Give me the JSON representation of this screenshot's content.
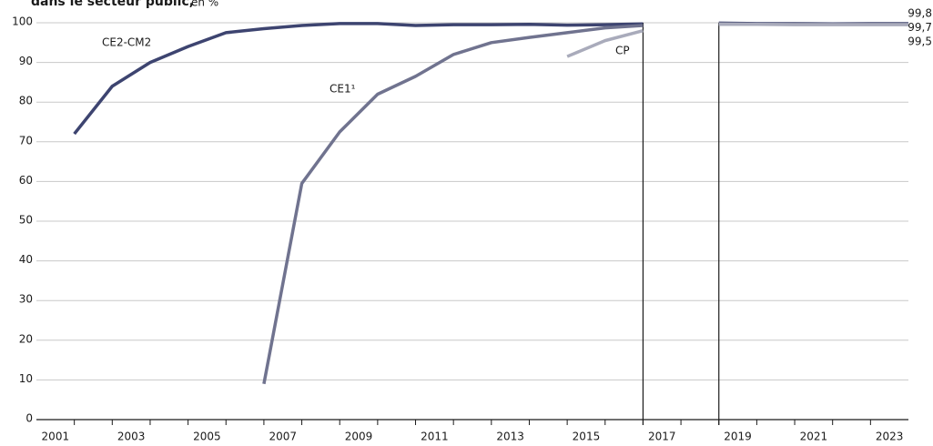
{
  "chart_data": {
    "type": "line",
    "title": "dans le secteur public,",
    "unit": "en %",
    "x": [
      2001.5,
      2002.5,
      2003.5,
      2004.5,
      2005.5,
      2006.5,
      2007.5,
      2008.5,
      2009.5,
      2010.5,
      2011.5,
      2012.5,
      2013.5,
      2014.5,
      2015.5,
      2016.5,
      2017.5,
      2018.5,
      2019.5,
      2020.5,
      2021.5,
      2022.5,
      2023.5
    ],
    "xlim": [
      2000.5,
      2023.5
    ],
    "xticks": [
      2001,
      2003,
      2005,
      2007,
      2009,
      2011,
      2013,
      2015,
      2017,
      2019,
      2021,
      2023
    ],
    "xminorticks": [
      2001.5,
      2002.5,
      2003.5,
      2004.5,
      2005.5,
      2006.5,
      2007.5,
      2008.5,
      2009.5,
      2010.5,
      2011.5,
      2012.5,
      2013.5,
      2014.5,
      2015.5,
      2016.5,
      2017.5,
      2018.5,
      2019.5,
      2020.5,
      2021.5,
      2022.5
    ],
    "vertical_lines": [
      2016.5,
      2018.5
    ],
    "ylim": [
      0,
      100
    ],
    "yticks": [
      0,
      10,
      20,
      30,
      40,
      50,
      60,
      70,
      80,
      90,
      100
    ],
    "grid": true,
    "series": [
      {
        "name": "CE2-CM2",
        "color": "#3d4470",
        "values": [
          72,
          84,
          90,
          94,
          97.5,
          98.5,
          99.3,
          99.8,
          99.8,
          99.3,
          99.5,
          99.5,
          99.6,
          99.4,
          99.5,
          99.7,
          null,
          99.9,
          99.8,
          99.8,
          99.7,
          99.8,
          99.8
        ],
        "value_labels": [
          null,
          null,
          null,
          null,
          null,
          null,
          null,
          null,
          null,
          null,
          null,
          null,
          null,
          null,
          null,
          null,
          null,
          null,
          null,
          null,
          null,
          null,
          "99,8"
        ]
      },
      {
        "name": "CE1¹",
        "color": "#70738f",
        "values": [
          null,
          null,
          null,
          null,
          null,
          9,
          59.5,
          72.5,
          82,
          86.5,
          92,
          95,
          96.3,
          97.5,
          98.7,
          99.3,
          null,
          99.8,
          99.7,
          99.7,
          99.6,
          99.7,
          99.7
        ],
        "value_labels": [
          null,
          null,
          null,
          null,
          null,
          null,
          null,
          null,
          null,
          null,
          null,
          null,
          null,
          null,
          null,
          null,
          null,
          null,
          null,
          null,
          null,
          null,
          "99,7"
        ]
      },
      {
        "name": "CP",
        "color": "#a9abbb",
        "values": [
          null,
          null,
          null,
          null,
          null,
          null,
          null,
          null,
          null,
          null,
          null,
          null,
          null,
          91.5,
          95.5,
          98,
          null,
          99.6,
          99.6,
          99.5,
          99.5,
          99.5,
          99.5
        ],
        "value_labels": [
          null,
          null,
          null,
          null,
          null,
          null,
          null,
          null,
          null,
          null,
          null,
          null,
          null,
          null,
          null,
          null,
          null,
          null,
          null,
          null,
          null,
          null,
          "99,5"
        ]
      }
    ]
  }
}
